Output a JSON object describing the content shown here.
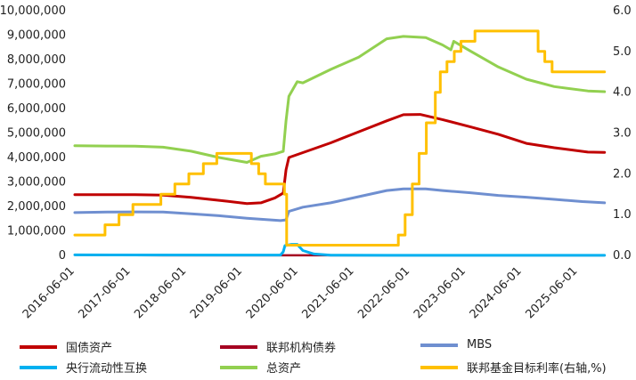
{
  "chart_data": {
    "type": "line",
    "x_labels": [
      "2016-06-01",
      "2017-06-01",
      "2018-06-01",
      "2019-06-01",
      "2020-06-01",
      "2021-06-01",
      "2022-06-01",
      "2023-06-01",
      "2024-06-01",
      "2025-06-01"
    ],
    "y_left": {
      "min": 0,
      "max": 10000000,
      "ticks": [
        "0",
        "1,000,000",
        "2,000,000",
        "3,000,000",
        "4,000,000",
        "5,000,000",
        "6,000,000",
        "7,000,000",
        "8,000,000",
        "9,000,000",
        "10,000,000"
      ]
    },
    "y_right": {
      "min": 0,
      "max": 6,
      "ticks": [
        "0.0",
        "1.0",
        "2.0",
        "3.0",
        "4.0",
        "5.0",
        "6.0"
      ]
    },
    "legend_placement": "bottom",
    "grid": false,
    "series": [
      {
        "name": "国债资产",
        "axis": "left",
        "color": "#c00000",
        "points": [
          [
            2016.42,
            2480000
          ],
          [
            2017.5,
            2480000
          ],
          [
            2018.0,
            2460000
          ],
          [
            2018.5,
            2370000
          ],
          [
            2019.0,
            2250000
          ],
          [
            2019.5,
            2120000
          ],
          [
            2019.75,
            2150000
          ],
          [
            2020.0,
            2350000
          ],
          [
            2020.15,
            2550000
          ],
          [
            2020.2,
            3500000
          ],
          [
            2020.25,
            4000000
          ],
          [
            2020.5,
            4200000
          ],
          [
            2021.0,
            4600000
          ],
          [
            2021.5,
            5050000
          ],
          [
            2022.0,
            5500000
          ],
          [
            2022.3,
            5750000
          ],
          [
            2022.6,
            5760000
          ],
          [
            2023.0,
            5550000
          ],
          [
            2023.5,
            5250000
          ],
          [
            2024.0,
            4950000
          ],
          [
            2024.5,
            4580000
          ],
          [
            2025.0,
            4400000
          ],
          [
            2025.6,
            4220000
          ],
          [
            2025.9,
            4210000
          ]
        ]
      },
      {
        "name": "联邦机构债券",
        "axis": "left",
        "color": "#a50021",
        "points": [
          [
            2016.42,
            30000
          ],
          [
            2017.5,
            10000
          ],
          [
            2018.0,
            5000
          ],
          [
            2019.0,
            2000
          ],
          [
            2020.0,
            2000
          ],
          [
            2021.0,
            2000
          ],
          [
            2022.0,
            2000
          ],
          [
            2023.0,
            2000
          ],
          [
            2024.0,
            2000
          ],
          [
            2025.9,
            2000
          ]
        ]
      },
      {
        "name": "MBS",
        "axis": "left",
        "color": "#6f8fd0",
        "points": [
          [
            2016.42,
            1750000
          ],
          [
            2017.0,
            1770000
          ],
          [
            2017.5,
            1780000
          ],
          [
            2018.0,
            1770000
          ],
          [
            2018.5,
            1700000
          ],
          [
            2019.0,
            1620000
          ],
          [
            2019.5,
            1520000
          ],
          [
            2020.1,
            1420000
          ],
          [
            2020.2,
            1450000
          ],
          [
            2020.25,
            1800000
          ],
          [
            2020.5,
            1970000
          ],
          [
            2021.0,
            2150000
          ],
          [
            2021.5,
            2400000
          ],
          [
            2022.0,
            2650000
          ],
          [
            2022.3,
            2720000
          ],
          [
            2022.7,
            2720000
          ],
          [
            2023.0,
            2650000
          ],
          [
            2023.5,
            2560000
          ],
          [
            2024.0,
            2450000
          ],
          [
            2024.5,
            2380000
          ],
          [
            2025.0,
            2290000
          ],
          [
            2025.5,
            2200000
          ],
          [
            2025.9,
            2150000
          ]
        ]
      },
      {
        "name": "央行流动性互换",
        "axis": "left",
        "color": "#00b0f0",
        "points": [
          [
            2016.42,
            20000
          ],
          [
            2019.0,
            15000
          ],
          [
            2020.1,
            15000
          ],
          [
            2020.15,
            150000
          ],
          [
            2020.18,
            400000
          ],
          [
            2020.3,
            450000
          ],
          [
            2020.4,
            450000
          ],
          [
            2020.5,
            200000
          ],
          [
            2020.7,
            60000
          ],
          [
            2021.0,
            10000
          ],
          [
            2022.0,
            5000
          ],
          [
            2023.0,
            5000
          ],
          [
            2024.0,
            5000
          ],
          [
            2025.9,
            5000
          ]
        ]
      },
      {
        "name": "总资产",
        "axis": "left",
        "color": "#92d050",
        "points": [
          [
            2016.42,
            4480000
          ],
          [
            2017.0,
            4470000
          ],
          [
            2017.5,
            4460000
          ],
          [
            2018.0,
            4420000
          ],
          [
            2018.5,
            4260000
          ],
          [
            2019.0,
            4000000
          ],
          [
            2019.5,
            3800000
          ],
          [
            2019.75,
            4050000
          ],
          [
            2020.0,
            4150000
          ],
          [
            2020.15,
            4250000
          ],
          [
            2020.2,
            5500000
          ],
          [
            2020.25,
            6500000
          ],
          [
            2020.4,
            7100000
          ],
          [
            2020.5,
            7050000
          ],
          [
            2021.0,
            7600000
          ],
          [
            2021.5,
            8100000
          ],
          [
            2022.0,
            8850000
          ],
          [
            2022.3,
            8950000
          ],
          [
            2022.7,
            8900000
          ],
          [
            2023.0,
            8600000
          ],
          [
            2023.15,
            8400000
          ],
          [
            2023.2,
            8750000
          ],
          [
            2023.5,
            8350000
          ],
          [
            2024.0,
            7700000
          ],
          [
            2024.5,
            7200000
          ],
          [
            2025.0,
            6900000
          ],
          [
            2025.6,
            6720000
          ],
          [
            2025.9,
            6690000
          ]
        ]
      },
      {
        "name": "联邦基金目标利率(右轴,%)",
        "axis": "right",
        "color": "#ffc000",
        "step": true,
        "points": [
          [
            2016.42,
            0.5
          ],
          [
            2016.96,
            0.75
          ],
          [
            2017.21,
            1.0
          ],
          [
            2017.46,
            1.25
          ],
          [
            2017.96,
            1.5
          ],
          [
            2018.21,
            1.75
          ],
          [
            2018.46,
            2.0
          ],
          [
            2018.72,
            2.25
          ],
          [
            2018.96,
            2.5
          ],
          [
            2019.58,
            2.25
          ],
          [
            2019.71,
            2.0
          ],
          [
            2019.83,
            1.75
          ],
          [
            2020.17,
            1.5
          ],
          [
            2020.21,
            0.25
          ],
          [
            2022.21,
            0.5
          ],
          [
            2022.33,
            1.0
          ],
          [
            2022.46,
            1.75
          ],
          [
            2022.58,
            2.5
          ],
          [
            2022.71,
            3.25
          ],
          [
            2022.87,
            4.0
          ],
          [
            2022.96,
            4.5
          ],
          [
            2023.08,
            4.75
          ],
          [
            2023.21,
            5.0
          ],
          [
            2023.33,
            5.25
          ],
          [
            2023.58,
            5.5
          ],
          [
            2024.71,
            5.0
          ],
          [
            2024.83,
            4.75
          ],
          [
            2024.96,
            4.5
          ],
          [
            2025.9,
            4.5
          ]
        ]
      }
    ]
  }
}
